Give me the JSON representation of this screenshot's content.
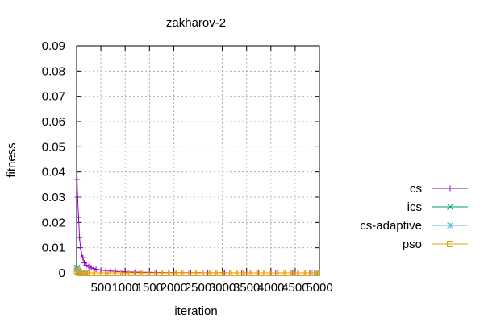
{
  "chart_data": {
    "type": "line",
    "title": "zakharov-2",
    "xlabel": "iteration",
    "ylabel": "fitness",
    "xlim": [
      0,
      5000
    ],
    "ylim": [
      0,
      0.09
    ],
    "x_ticks": [
      500,
      1000,
      1500,
      2000,
      2500,
      3000,
      3500,
      4000,
      4500,
      5000
    ],
    "x_tick_labels": [
      "500",
      "1000",
      "1500",
      "2000",
      "2500",
      "3000",
      "3500",
      "4000",
      "4500",
      "5000"
    ],
    "y_ticks": [
      0,
      0.01,
      0.02,
      0.03,
      0.04,
      0.05,
      0.06,
      0.07,
      0.08,
      0.09
    ],
    "y_tick_labels": [
      "0",
      "0.01",
      "0.02",
      "0.03",
      "0.04",
      "0.05",
      "0.06",
      "0.07",
      "0.08",
      "0.09"
    ],
    "grid": true,
    "legend_position": "top-right outside",
    "series": [
      {
        "name": "cs",
        "color": "#9400d3",
        "marker": "plus",
        "x": [
          10,
          20,
          40,
          60,
          80,
          100,
          130,
          160,
          200,
          250,
          300,
          350,
          400,
          500,
          600,
          700,
          800,
          1000,
          1200,
          1500,
          2000,
          2500,
          3000,
          3500,
          4000,
          4500,
          4950
        ],
        "y": [
          0.037,
          0.03,
          0.022,
          0.014,
          0.01,
          0.0075,
          0.006,
          0.004,
          0.003,
          0.0025,
          0.002,
          0.0017,
          0.0014,
          0.0011,
          0.0009,
          0.0007,
          0.0006,
          0.0004,
          0.0003,
          0.0002,
          0.0001,
          6e-05,
          4e-05,
          2e-05,
          1e-05,
          5e-06,
          2e-06
        ]
      },
      {
        "name": "ics",
        "color": "#009e73",
        "marker": "cross",
        "x": [
          10,
          30,
          60,
          100,
          200,
          4950
        ],
        "y": [
          0.002,
          0.0008,
          0.0002,
          5e-05,
          0.0,
          0.0
        ]
      },
      {
        "name": "cs-adaptive",
        "color": "#56b4e9",
        "marker": "star",
        "x": [
          10,
          30,
          60,
          100,
          200,
          4950
        ],
        "y": [
          0.0015,
          0.0005,
          0.0001,
          3e-05,
          0.0,
          0.0
        ]
      },
      {
        "name": "pso",
        "color": "#e69f00",
        "marker": "square",
        "x": [
          10,
          50,
          100,
          200,
          4950
        ],
        "y": [
          0.0008,
          0.0001,
          0.0,
          0.0,
          0.0
        ]
      }
    ]
  }
}
